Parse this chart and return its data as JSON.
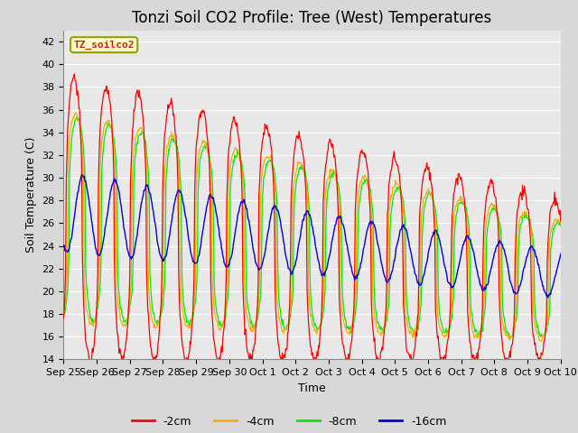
{
  "title": "Tonzi Soil CO2 Profile: Tree (West) Temperatures",
  "xlabel": "Time",
  "ylabel": "Soil Temperature (C)",
  "ylim": [
    14,
    43
  ],
  "yticks": [
    14,
    16,
    18,
    20,
    22,
    24,
    26,
    28,
    30,
    32,
    34,
    36,
    38,
    40,
    42
  ],
  "legend_label": "TZ_soilco2",
  "series": [
    {
      "label": "-2cm",
      "color": "#ff0000"
    },
    {
      "label": "-4cm",
      "color": "#ffaa00"
    },
    {
      "label": "-8cm",
      "color": "#00ee00"
    },
    {
      "label": "-16cm",
      "color": "#0000dd"
    }
  ],
  "xtick_labels": [
    "Sep 25",
    "Sep 26",
    "Sep 27",
    "Sep 28",
    "Sep 29",
    "Sep 30",
    "Oct 1",
    "Oct 2",
    "Oct 3",
    "Oct 4",
    "Oct 5",
    "Oct 6",
    "Oct 7",
    "Oct 8",
    "Oct 9",
    "Oct 10"
  ],
  "plot_bg": "#e8e8e8",
  "grid_color": "#ffffff",
  "title_fontsize": 12,
  "axis_label_fontsize": 9,
  "tick_fontsize": 8
}
